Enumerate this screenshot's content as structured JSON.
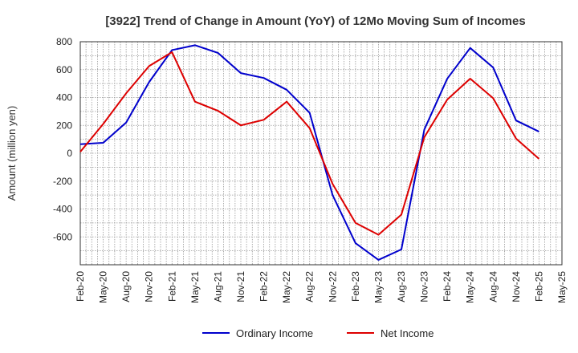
{
  "chart_data": {
    "type": "line",
    "title": "[3922]  Trend of Change in Amount (YoY) of 12Mo Moving Sum of Incomes",
    "xlabel": "",
    "ylabel": "Amount (million yen)",
    "ylim": [
      -800,
      800
    ],
    "yticks": [
      800,
      600,
      400,
      200,
      0,
      -200,
      -400,
      -600
    ],
    "categories": [
      "Feb-20",
      "May-20",
      "Aug-20",
      "Nov-20",
      "Feb-21",
      "May-21",
      "Aug-21",
      "Nov-21",
      "Feb-22",
      "May-22",
      "Aug-22",
      "Nov-22",
      "Feb-23",
      "May-23",
      "Aug-23",
      "Nov-23",
      "Feb-24",
      "May-24",
      "Aug-24",
      "Nov-24",
      "Feb-25",
      "May-25"
    ],
    "grid": true,
    "legend_position": "bottom",
    "series": [
      {
        "name": "Ordinary Income",
        "color": "#0000cc",
        "values": [
          65,
          75,
          220,
          510,
          740,
          775,
          720,
          575,
          540,
          455,
          290,
          -300,
          -645,
          -765,
          -690,
          170,
          535,
          755,
          615,
          235,
          155,
          null
        ]
      },
      {
        "name": "Net Income",
        "color": "#dd0000",
        "values": [
          10,
          210,
          430,
          625,
          725,
          370,
          305,
          200,
          240,
          370,
          180,
          -220,
          -500,
          -585,
          -440,
          115,
          385,
          535,
          395,
          105,
          -40,
          null
        ]
      }
    ]
  }
}
